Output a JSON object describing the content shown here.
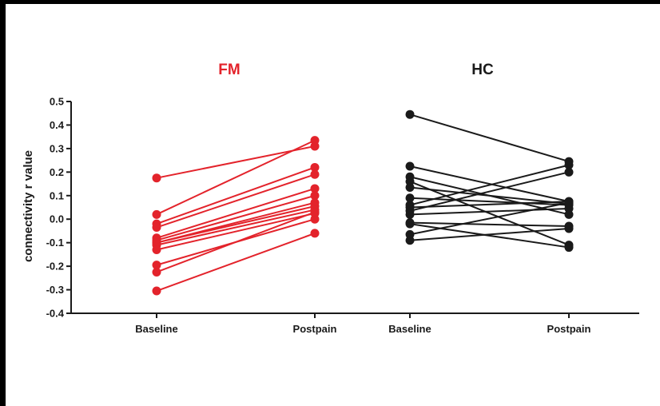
{
  "chart_data": {
    "type": "line",
    "ylabel": "connectivity r value",
    "ylim": [
      -0.4,
      0.5
    ],
    "yticks": [
      "0.5",
      "0.4",
      "0.3",
      "0.2",
      "0.1",
      "0.0",
      "-0.1",
      "-0.2",
      "-0.3",
      "-0.4"
    ],
    "grid": false,
    "panels": [
      {
        "title": "FM",
        "color": "#e3232b",
        "categories": [
          "Baseline",
          "Postpain"
        ],
        "pairs": [
          [
            0.175,
            0.31
          ],
          [
            0.02,
            0.335
          ],
          [
            -0.02,
            0.22
          ],
          [
            -0.035,
            0.19
          ],
          [
            -0.08,
            0.13
          ],
          [
            -0.09,
            0.1
          ],
          [
            -0.1,
            0.07
          ],
          [
            -0.1,
            0.055
          ],
          [
            -0.11,
            0.04
          ],
          [
            -0.13,
            0.025
          ],
          [
            -0.195,
            0.0
          ],
          [
            -0.225,
            0.03
          ],
          [
            -0.305,
            -0.06
          ]
        ]
      },
      {
        "title": "HC",
        "color": "#1a1a1a",
        "categories": [
          "Baseline",
          "Postpain"
        ],
        "pairs": [
          [
            0.445,
            0.245
          ],
          [
            0.225,
            0.075
          ],
          [
            0.18,
            0.02
          ],
          [
            0.16,
            -0.11
          ],
          [
            0.135,
            0.065
          ],
          [
            0.09,
            0.06
          ],
          [
            0.06,
            0.23
          ],
          [
            0.05,
            0.075
          ],
          [
            0.035,
            0.2
          ],
          [
            0.02,
            0.045
          ],
          [
            -0.015,
            -0.03
          ],
          [
            -0.02,
            -0.12
          ],
          [
            -0.065,
            0.07
          ],
          [
            -0.09,
            -0.04
          ]
        ]
      }
    ]
  }
}
